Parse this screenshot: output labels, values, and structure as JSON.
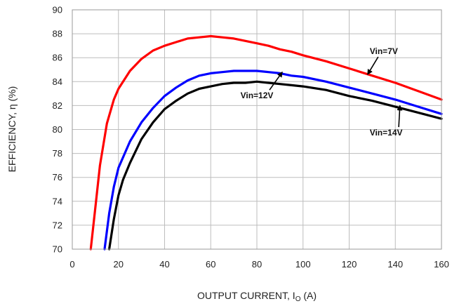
{
  "chart_data": {
    "type": "line",
    "title": "",
    "xlabel": "OUTPUT CURRENT, I",
    "xlabel_sub": "O",
    "xlabel_unit": " (A)",
    "ylabel": "EFFICIENCY, η  (%)",
    "xlim": [
      0,
      160
    ],
    "ylim": [
      70,
      90
    ],
    "x_ticks": [
      0,
      20,
      40,
      60,
      80,
      100,
      120,
      140,
      160
    ],
    "y_ticks": [
      70,
      72,
      74,
      76,
      78,
      80,
      82,
      84,
      86,
      88,
      90
    ],
    "grid": true,
    "legend": "none",
    "series": [
      {
        "name": "Vin=7V",
        "color": "#ff0000",
        "x": [
          8,
          10,
          12,
          15,
          18,
          20,
          25,
          30,
          35,
          40,
          45,
          50,
          55,
          60,
          65,
          70,
          75,
          80,
          85,
          90,
          95,
          100,
          110,
          120,
          130,
          140,
          150,
          160
        ],
        "y": [
          70,
          73.5,
          77,
          80.5,
          82.5,
          83.4,
          84.9,
          85.9,
          86.6,
          87.0,
          87.3,
          87.6,
          87.7,
          87.8,
          87.7,
          87.6,
          87.4,
          87.2,
          87.0,
          86.7,
          86.5,
          86.2,
          85.7,
          85.1,
          84.5,
          83.9,
          83.2,
          82.5
        ]
      },
      {
        "name": "Vin=12V",
        "color": "#0000ff",
        "x": [
          14,
          16,
          18,
          20,
          25,
          30,
          35,
          40,
          45,
          50,
          55,
          60,
          65,
          70,
          75,
          80,
          85,
          90,
          95,
          100,
          110,
          120,
          130,
          140,
          150,
          160
        ],
        "y": [
          70,
          73,
          75.2,
          76.8,
          79.0,
          80.6,
          81.8,
          82.8,
          83.5,
          84.1,
          84.5,
          84.7,
          84.8,
          84.9,
          84.9,
          84.9,
          84.8,
          84.7,
          84.5,
          84.4,
          84.0,
          83.5,
          83.0,
          82.5,
          81.9,
          81.3
        ]
      },
      {
        "name": "Vin=14V",
        "color": "#000000",
        "x": [
          16,
          18,
          20,
          22,
          25,
          30,
          35,
          40,
          45,
          50,
          55,
          60,
          65,
          70,
          75,
          80,
          85,
          90,
          95,
          100,
          110,
          120,
          130,
          140,
          150,
          160
        ],
        "y": [
          70,
          72.5,
          74.5,
          75.8,
          77.2,
          79.2,
          80.6,
          81.7,
          82.4,
          83.0,
          83.4,
          83.6,
          83.8,
          83.9,
          83.9,
          84.0,
          83.9,
          83.8,
          83.7,
          83.6,
          83.3,
          82.8,
          82.4,
          81.9,
          81.4,
          80.9
        ]
      }
    ],
    "annotations": [
      {
        "text": "Vin=7V",
        "series": 0,
        "text_at": [
          135,
          86.3
        ],
        "arrow_to": [
          128,
          84.6
        ]
      },
      {
        "text": "Vin=12V",
        "series": 1,
        "text_at": [
          80,
          82.6
        ],
        "arrow_to": [
          91,
          84.8
        ]
      },
      {
        "text": "Vin=14V",
        "series": 2,
        "text_at": [
          136,
          79.5
        ],
        "arrow_to": [
          142,
          82.0
        ]
      }
    ]
  }
}
